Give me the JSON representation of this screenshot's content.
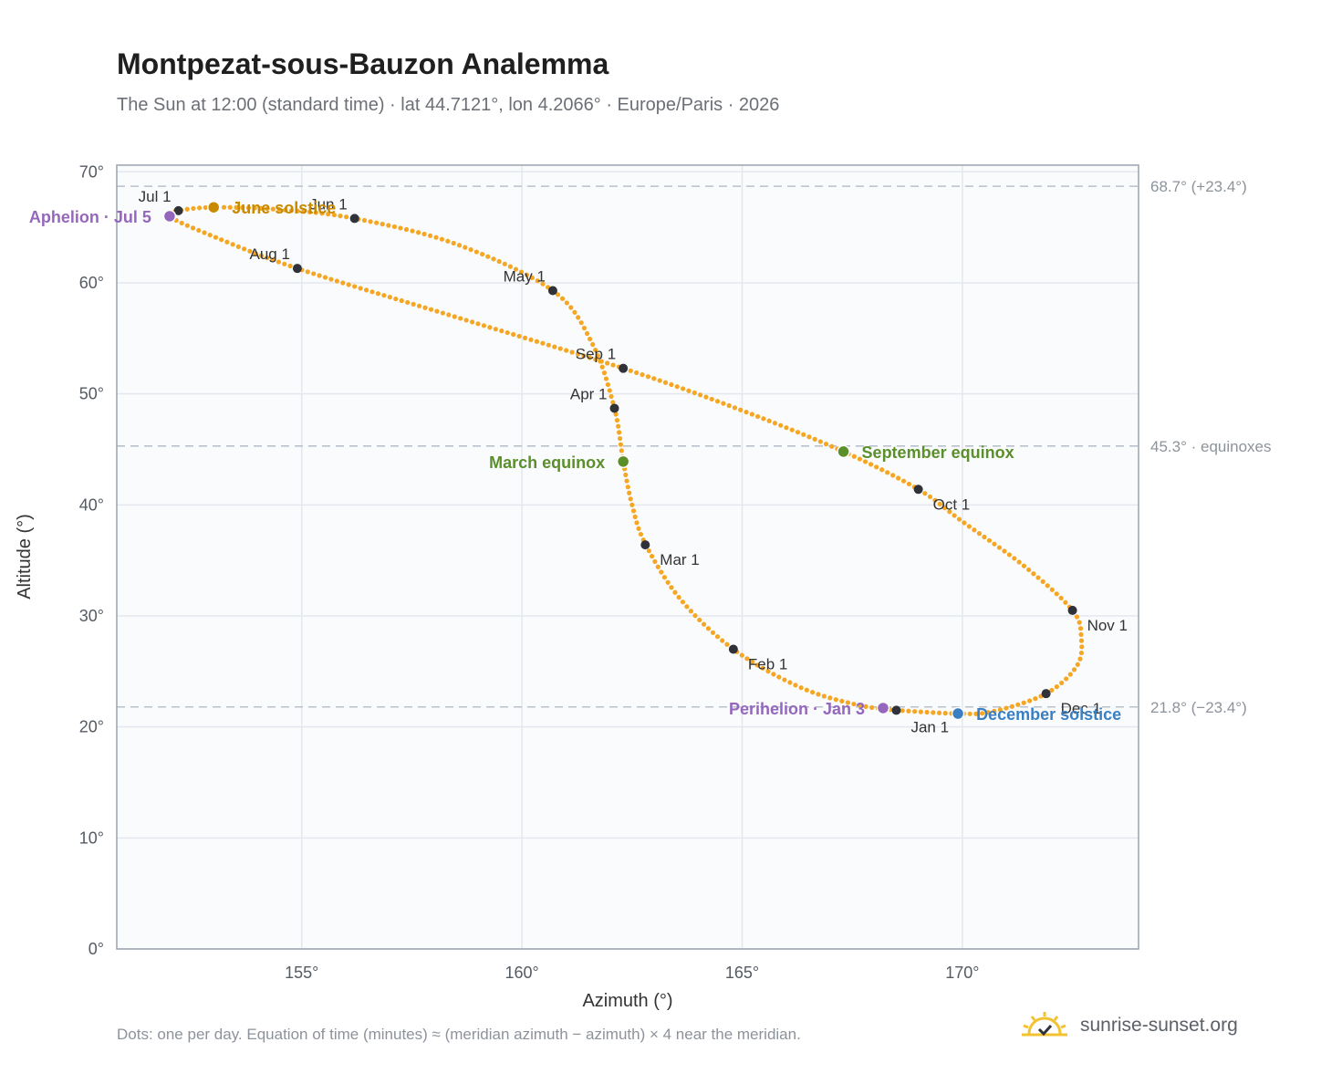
{
  "chart_data": {
    "type": "scatter",
    "title": "Montpezat-sous-Bauzon Analemma",
    "subtitle": "The Sun at 12:00 (standard time) · lat 44.7121°, lon 4.2066° · Europe/Paris · 2026",
    "xlabel": "Azimuth (°)",
    "ylabel": "Altitude (°)",
    "xlim": [
      150.8,
      174.0
    ],
    "ylim": [
      0,
      70.6
    ],
    "x_ticks": [
      {
        "value": 155,
        "label": "155°"
      },
      {
        "value": 160,
        "label": "160°"
      },
      {
        "value": 165,
        "label": "165°"
      },
      {
        "value": 170,
        "label": "170°"
      }
    ],
    "y_ticks": [
      {
        "value": 0,
        "label": "0°"
      },
      {
        "value": 10,
        "label": "10°"
      },
      {
        "value": 20,
        "label": "20°"
      },
      {
        "value": 30,
        "label": "30°"
      },
      {
        "value": 40,
        "label": "40°"
      },
      {
        "value": 50,
        "label": "50°"
      },
      {
        "value": 60,
        "label": "60°"
      },
      {
        "value": 70,
        "label": "70°"
      }
    ],
    "grid": true,
    "reference_lines": [
      {
        "altitude": 68.7,
        "label": "68.7° (+23.4°)"
      },
      {
        "altitude": 45.3,
        "label": "45.3° · equinoxes"
      },
      {
        "altitude": 21.8,
        "label": "21.8° (−23.4°)"
      }
    ],
    "analemma_key_points": [
      {
        "azimuth": 168.5,
        "altitude": 21.5
      },
      {
        "azimuth": 169.9,
        "altitude": 21.2
      },
      {
        "azimuth": 170.7,
        "altitude": 21.4
      },
      {
        "azimuth": 171.9,
        "altitude": 23.0
      },
      {
        "azimuth": 172.6,
        "altitude": 25.5
      },
      {
        "azimuth": 172.7,
        "altitude": 28.0
      },
      {
        "azimuth": 172.5,
        "altitude": 30.5
      },
      {
        "azimuth": 171.4,
        "altitude": 34.5
      },
      {
        "azimuth": 170.0,
        "altitude": 38.5
      },
      {
        "azimuth": 169.0,
        "altitude": 41.4
      },
      {
        "azimuth": 167.3,
        "altitude": 44.8
      },
      {
        "azimuth": 165.0,
        "altitude": 48.5
      },
      {
        "azimuth": 162.3,
        "altitude": 52.3
      },
      {
        "azimuth": 158.6,
        "altitude": 56.8
      },
      {
        "azimuth": 154.9,
        "altitude": 61.3
      },
      {
        "azimuth": 152.8,
        "altitude": 64.5
      },
      {
        "azimuth": 152.0,
        "altitude": 66.0
      },
      {
        "azimuth": 152.2,
        "altitude": 66.5
      },
      {
        "azimuth": 153.0,
        "altitude": 66.8
      },
      {
        "azimuth": 154.5,
        "altitude": 66.6
      },
      {
        "azimuth": 156.2,
        "altitude": 65.8
      },
      {
        "azimuth": 158.5,
        "altitude": 63.5
      },
      {
        "azimuth": 160.7,
        "altitude": 59.3
      },
      {
        "azimuth": 161.6,
        "altitude": 54.5
      },
      {
        "azimuth": 162.1,
        "altitude": 48.7
      },
      {
        "azimuth": 162.3,
        "altitude": 43.9
      },
      {
        "azimuth": 162.5,
        "altitude": 40.0
      },
      {
        "azimuth": 162.8,
        "altitude": 36.5
      },
      {
        "azimuth": 163.6,
        "altitude": 31.5
      },
      {
        "azimuth": 164.8,
        "altitude": 27.0
      },
      {
        "azimuth": 166.3,
        "altitude": 23.6
      },
      {
        "azimuth": 167.6,
        "altitude": 22.0
      },
      {
        "azimuth": 168.5,
        "altitude": 21.5
      }
    ],
    "month_markers": [
      {
        "label": "Jan 1",
        "azimuth": 168.5,
        "altitude": 21.5,
        "anchor": "below"
      },
      {
        "label": "Feb 1",
        "azimuth": 164.8,
        "altitude": 27.0,
        "anchor": "below-right"
      },
      {
        "label": "Mar 1",
        "azimuth": 162.8,
        "altitude": 36.4,
        "anchor": "below-right"
      },
      {
        "label": "Apr 1",
        "azimuth": 162.1,
        "altitude": 48.7,
        "anchor": "above-left"
      },
      {
        "label": "May 1",
        "azimuth": 160.7,
        "altitude": 59.3,
        "anchor": "above-left"
      },
      {
        "label": "Jun 1",
        "azimuth": 156.2,
        "altitude": 65.8,
        "anchor": "above-left"
      },
      {
        "label": "Jul 1",
        "azimuth": 152.2,
        "altitude": 66.5,
        "anchor": "above-left"
      },
      {
        "label": "Aug 1",
        "azimuth": 154.9,
        "altitude": 61.3,
        "anchor": "above-left"
      },
      {
        "label": "Sep 1",
        "azimuth": 162.3,
        "altitude": 52.3,
        "anchor": "above-left"
      },
      {
        "label": "Oct 1",
        "azimuth": 169.0,
        "altitude": 41.4,
        "anchor": "below-right"
      },
      {
        "label": "Nov 1",
        "azimuth": 172.5,
        "altitude": 30.5,
        "anchor": "below-right"
      },
      {
        "label": "Dec 1",
        "azimuth": 171.9,
        "altitude": 23.0,
        "anchor": "below-right"
      }
    ],
    "events": [
      {
        "label": "June solstice",
        "azimuth": 153.0,
        "altitude": 66.8,
        "color": "#c98a00",
        "anchor": "right"
      },
      {
        "label": "Aphelion · Jul 5",
        "azimuth": 152.0,
        "altitude": 66.0,
        "color": "#9467bd",
        "anchor": "left"
      },
      {
        "label": "March equinox",
        "azimuth": 162.3,
        "altitude": 43.9,
        "color": "#5a8f29",
        "anchor": "left"
      },
      {
        "label": "September equinox",
        "azimuth": 167.3,
        "altitude": 44.8,
        "color": "#5a8f29",
        "anchor": "right"
      },
      {
        "label": "Perihelion · Jan 3",
        "azimuth": 168.2,
        "altitude": 21.7,
        "color": "#9467bd",
        "anchor": "left"
      },
      {
        "label": "December solstice",
        "azimuth": 169.9,
        "altitude": 21.2,
        "color": "#3a7fc1",
        "anchor": "right"
      }
    ],
    "colors": {
      "curve": "#f5a623",
      "month_dot": "#2f3238",
      "grid": "#e4e8ee",
      "reference": "#b9c1cb",
      "plot_bg": "#f9fbfd",
      "frame": "#9aa3ad"
    }
  },
  "footer": {
    "note": "Dots: one per day. Equation of time (minutes) ≈ (meridian azimuth − azimuth) × 4 near the meridian.",
    "brand": "sunrise-sunset.org",
    "brand_icon": "sun-icon"
  }
}
